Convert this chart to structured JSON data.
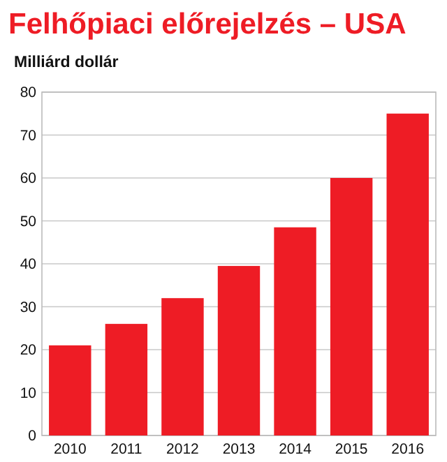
{
  "chart_data": {
    "type": "bar",
    "title": "Felhőpiaci előrejelzés – USA",
    "ylabel": "Milliárd dollár",
    "categories": [
      "2010",
      "2011",
      "2012",
      "2013",
      "2014",
      "2015",
      "2016"
    ],
    "values": [
      21,
      26,
      32,
      39.5,
      48.5,
      60,
      75
    ],
    "color": "#ee1c25",
    "ylim": [
      0,
      80
    ],
    "yticks": [
      0,
      10,
      20,
      30,
      40,
      50,
      60,
      70,
      80
    ],
    "grid": "y"
  }
}
